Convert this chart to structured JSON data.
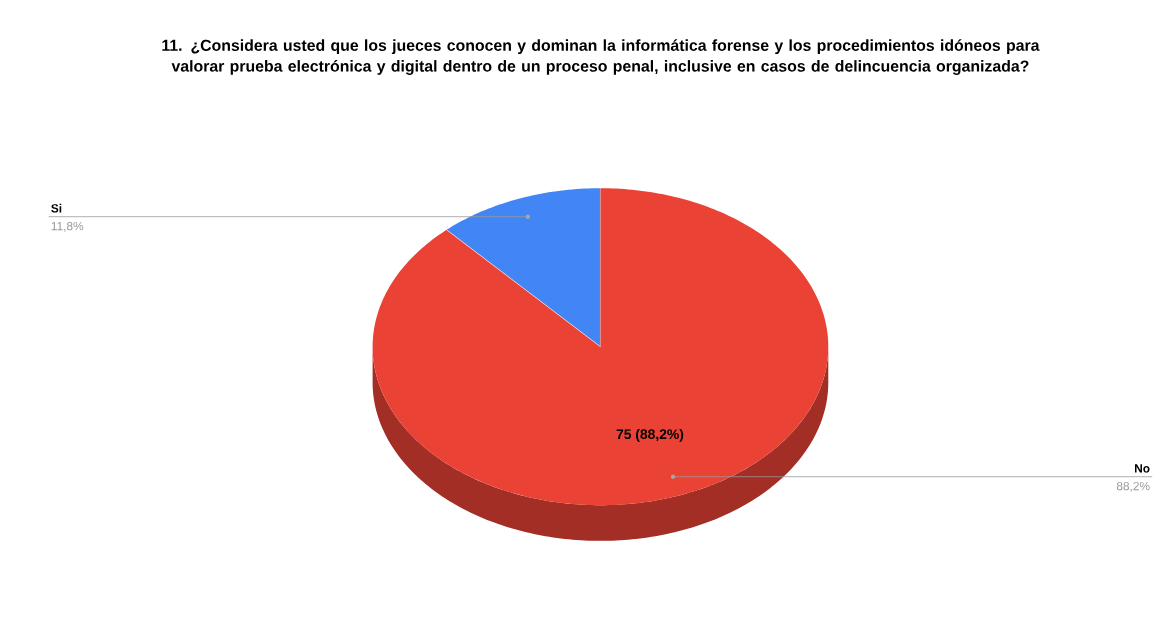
{
  "chart_data": {
    "type": "pie",
    "title": "11. ¿Considera usted que los jueces conocen y dominan la informática forense y los procedimientos idóneos para valorar prueba electrónica y digital dentro de un proceso penal, inclusive en casos de delincuencia organizada?",
    "categories": [
      "Si",
      "No"
    ],
    "values": [
      11.8,
      88.2
    ],
    "colors": [
      "#4285f4",
      "#ea4335"
    ],
    "value_labels": [
      "11,8%",
      "88,2%"
    ],
    "annotations": [
      "75 (88,2%)"
    ]
  }
}
